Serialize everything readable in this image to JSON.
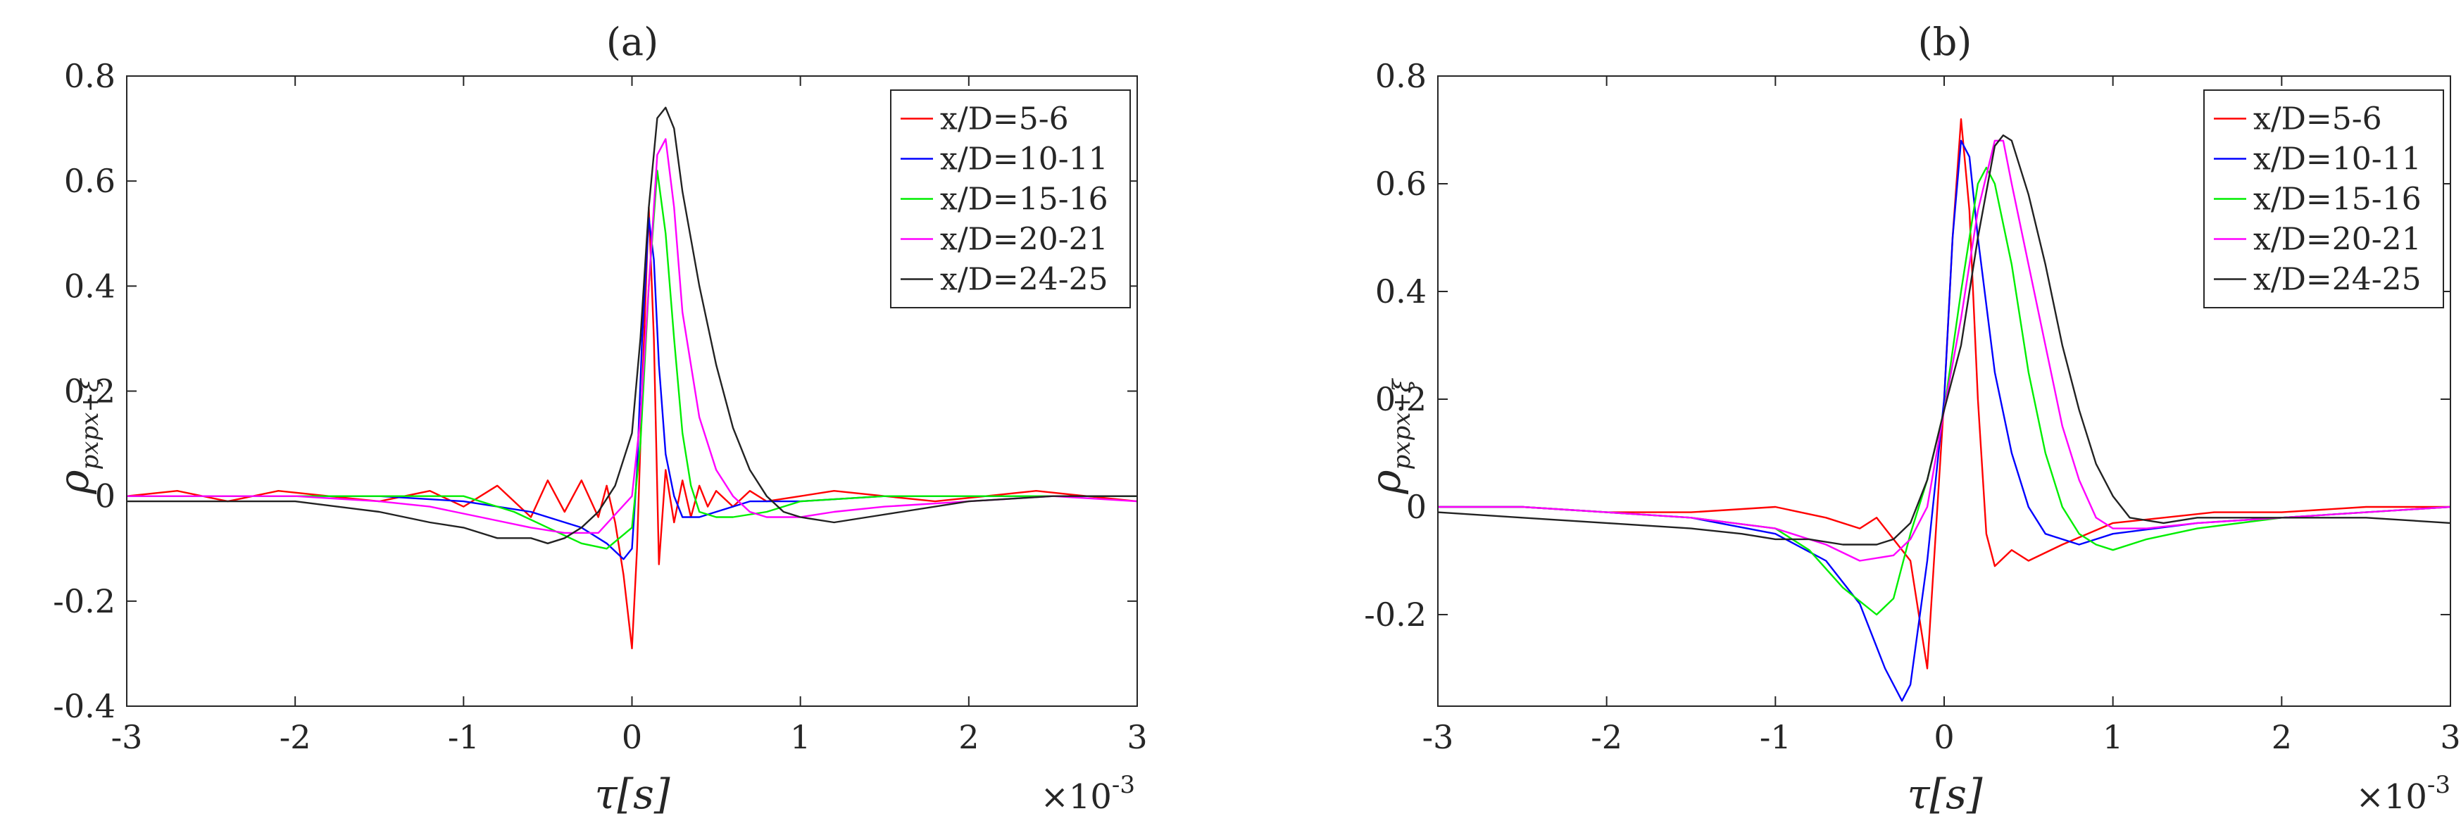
{
  "figure": {
    "exponent_label": "×10",
    "exponent_power": "-3"
  },
  "chart_data": [
    {
      "type": "line",
      "title": "(a)",
      "xlabel": "τ[s]",
      "ylabel": "ρ",
      "ylabel_subscript": "pxpx+ξ",
      "xlim": [
        -3,
        3
      ],
      "ylim": [
        -0.4,
        0.8
      ],
      "x_scale_factor": "×10^-3",
      "xticks": [
        "-3",
        "-2",
        "-1",
        "0",
        "1",
        "2",
        "3"
      ],
      "yticks": [
        "-0.4",
        "-0.2",
        "0",
        "0.2",
        "0.4",
        "0.6",
        "0.8"
      ],
      "ytick_values": [
        -0.4,
        -0.2,
        0,
        0.2,
        0.4,
        0.6,
        0.8
      ],
      "grid": false,
      "legend_position": "top-right",
      "series": [
        {
          "name": "x/D=5-6",
          "color": "#ff0000",
          "x": [
            -3,
            -2.7,
            -2.4,
            -2.1,
            -1.8,
            -1.5,
            -1.2,
            -1.0,
            -0.8,
            -0.6,
            -0.5,
            -0.4,
            -0.3,
            -0.2,
            -0.15,
            -0.1,
            -0.05,
            0.0,
            0.03,
            0.06,
            0.1,
            0.13,
            0.16,
            0.2,
            0.25,
            0.3,
            0.35,
            0.4,
            0.45,
            0.5,
            0.6,
            0.7,
            0.8,
            1.0,
            1.2,
            1.5,
            1.8,
            2.1,
            2.4,
            2.7,
            3
          ],
          "y": [
            0.0,
            0.01,
            -0.01,
            0.01,
            0.0,
            -0.01,
            0.01,
            -0.02,
            0.02,
            -0.04,
            0.03,
            -0.03,
            0.03,
            -0.04,
            0.02,
            -0.05,
            -0.15,
            -0.29,
            -0.1,
            0.2,
            0.55,
            0.3,
            -0.13,
            0.05,
            -0.05,
            0.03,
            -0.04,
            0.02,
            -0.02,
            0.01,
            -0.02,
            0.01,
            -0.01,
            0.0,
            0.01,
            0.0,
            -0.01,
            0.0,
            0.01,
            0.0,
            -0.01
          ]
        },
        {
          "name": "x/D=10-11",
          "color": "#0000ff",
          "x": [
            -3,
            -2.5,
            -2.0,
            -1.5,
            -1.0,
            -0.6,
            -0.3,
            -0.15,
            -0.05,
            0.0,
            0.03,
            0.06,
            0.1,
            0.13,
            0.16,
            0.2,
            0.25,
            0.3,
            0.4,
            0.5,
            0.7,
            1.0,
            1.5,
            2.0,
            2.5,
            3
          ],
          "y": [
            0.0,
            0.0,
            0.0,
            0.0,
            -0.01,
            -0.03,
            -0.06,
            -0.09,
            -0.12,
            -0.1,
            0.05,
            0.3,
            0.53,
            0.45,
            0.25,
            0.08,
            0.0,
            -0.04,
            -0.04,
            -0.03,
            -0.01,
            -0.01,
            0.0,
            0.0,
            0.0,
            0.0
          ]
        },
        {
          "name": "x/D=15-16",
          "color": "#00ee00",
          "x": [
            -3,
            -2.5,
            -2.0,
            -1.5,
            -1.0,
            -0.7,
            -0.5,
            -0.3,
            -0.15,
            0.0,
            0.05,
            0.1,
            0.15,
            0.2,
            0.25,
            0.3,
            0.35,
            0.4,
            0.5,
            0.6,
            0.8,
            1.0,
            1.5,
            2.0,
            2.5,
            3
          ],
          "y": [
            0.0,
            0.0,
            0.0,
            0.0,
            0.0,
            -0.03,
            -0.06,
            -0.09,
            -0.1,
            -0.06,
            0.1,
            0.4,
            0.62,
            0.5,
            0.3,
            0.12,
            0.02,
            -0.03,
            -0.04,
            -0.04,
            -0.03,
            -0.01,
            0.0,
            0.0,
            0.0,
            0.0
          ]
        },
        {
          "name": "x/D=20-21",
          "color": "#ff00ff",
          "x": [
            -3,
            -2.5,
            -2.0,
            -1.5,
            -1.2,
            -0.9,
            -0.6,
            -0.4,
            -0.2,
            0.0,
            0.05,
            0.1,
            0.15,
            0.2,
            0.25,
            0.3,
            0.4,
            0.5,
            0.6,
            0.7,
            0.8,
            1.0,
            1.2,
            1.5,
            2.0,
            2.5,
            3
          ],
          "y": [
            0.0,
            0.0,
            0.0,
            -0.01,
            -0.02,
            -0.04,
            -0.06,
            -0.07,
            -0.07,
            0.0,
            0.15,
            0.4,
            0.65,
            0.68,
            0.55,
            0.35,
            0.15,
            0.05,
            0.0,
            -0.03,
            -0.04,
            -0.04,
            -0.03,
            -0.02,
            -0.01,
            0.0,
            -0.01
          ]
        },
        {
          "name": "x/D=24-25",
          "color": "#222222",
          "x": [
            -3,
            -2.5,
            -2.0,
            -1.5,
            -1.2,
            -1.0,
            -0.8,
            -0.6,
            -0.5,
            -0.4,
            -0.3,
            -0.2,
            -0.1,
            0.0,
            0.05,
            0.1,
            0.15,
            0.2,
            0.25,
            0.3,
            0.4,
            0.5,
            0.6,
            0.7,
            0.8,
            0.9,
            1.0,
            1.2,
            1.4,
            1.6,
            2.0,
            2.5,
            3
          ],
          "y": [
            -0.01,
            -0.01,
            -0.01,
            -0.03,
            -0.05,
            -0.06,
            -0.08,
            -0.08,
            -0.09,
            -0.08,
            -0.06,
            -0.03,
            0.02,
            0.12,
            0.3,
            0.55,
            0.72,
            0.74,
            0.7,
            0.58,
            0.4,
            0.25,
            0.13,
            0.05,
            0.0,
            -0.03,
            -0.04,
            -0.05,
            -0.04,
            -0.03,
            -0.01,
            0.0,
            0.0
          ]
        }
      ]
    },
    {
      "type": "line",
      "title": "(b)",
      "xlabel": "τ[s]",
      "ylabel": "ρ",
      "ylabel_subscript": "pxpx+ξ",
      "xlim": [
        -3,
        3
      ],
      "ylim": [
        -0.37,
        0.8
      ],
      "x_scale_factor": "×10^-3",
      "xticks": [
        "-3",
        "-2",
        "-1",
        "0",
        "1",
        "2",
        "3"
      ],
      "yticks": [
        "-0.2",
        "0",
        "0.2",
        "0.4",
        "0.6",
        "0.8"
      ],
      "ytick_values": [
        -0.2,
        0,
        0.2,
        0.4,
        0.6,
        0.8
      ],
      "grid": false,
      "legend_position": "top-right",
      "series": [
        {
          "name": "x/D=5-6",
          "color": "#ff0000",
          "x": [
            -3,
            -2.5,
            -2.0,
            -1.5,
            -1.0,
            -0.7,
            -0.5,
            -0.4,
            -0.3,
            -0.2,
            -0.1,
            -0.05,
            0.0,
            0.05,
            0.1,
            0.15,
            0.2,
            0.25,
            0.3,
            0.4,
            0.5,
            0.7,
            1.0,
            1.3,
            1.6,
            2.0,
            2.5,
            3
          ],
          "y": [
            0.0,
            0.0,
            -0.01,
            -0.01,
            0.0,
            -0.02,
            -0.04,
            -0.02,
            -0.06,
            -0.1,
            -0.3,
            -0.05,
            0.2,
            0.5,
            0.72,
            0.55,
            0.2,
            -0.05,
            -0.11,
            -0.08,
            -0.1,
            -0.07,
            -0.03,
            -0.02,
            -0.01,
            -0.01,
            0.0,
            0.0
          ]
        },
        {
          "name": "x/D=10-11",
          "color": "#0000ff",
          "x": [
            -3,
            -2.5,
            -2.0,
            -1.5,
            -1.0,
            -0.7,
            -0.5,
            -0.35,
            -0.25,
            -0.2,
            -0.1,
            0.0,
            0.05,
            0.1,
            0.15,
            0.2,
            0.3,
            0.4,
            0.5,
            0.6,
            0.7,
            0.8,
            1.0,
            1.5,
            2.0,
            2.5,
            3
          ],
          "y": [
            0.0,
            0.0,
            -0.01,
            -0.02,
            -0.05,
            -0.1,
            -0.18,
            -0.3,
            -0.36,
            -0.33,
            -0.1,
            0.2,
            0.5,
            0.68,
            0.65,
            0.5,
            0.25,
            0.1,
            0.0,
            -0.05,
            -0.06,
            -0.07,
            -0.05,
            -0.03,
            -0.02,
            -0.01,
            0.0
          ]
        },
        {
          "name": "x/D=15-16",
          "color": "#00ee00",
          "x": [
            -3,
            -2.5,
            -2.0,
            -1.5,
            -1.0,
            -0.8,
            -0.6,
            -0.4,
            -0.3,
            -0.2,
            -0.1,
            0.0,
            0.1,
            0.2,
            0.25,
            0.3,
            0.4,
            0.5,
            0.6,
            0.7,
            0.8,
            0.9,
            1.0,
            1.2,
            1.5,
            2.0,
            2.5,
            3
          ],
          "y": [
            0.0,
            0.0,
            -0.01,
            -0.02,
            -0.04,
            -0.08,
            -0.15,
            -0.2,
            -0.17,
            -0.05,
            0.05,
            0.18,
            0.4,
            0.6,
            0.63,
            0.6,
            0.45,
            0.25,
            0.1,
            0.0,
            -0.05,
            -0.07,
            -0.08,
            -0.06,
            -0.04,
            -0.02,
            -0.01,
            0.0
          ]
        },
        {
          "name": "x/D=20-21",
          "color": "#ff00ff",
          "x": [
            -3,
            -2.5,
            -2.0,
            -1.5,
            -1.0,
            -0.7,
            -0.5,
            -0.3,
            -0.2,
            -0.1,
            0.0,
            0.1,
            0.2,
            0.3,
            0.35,
            0.4,
            0.5,
            0.6,
            0.7,
            0.8,
            0.9,
            1.0,
            1.2,
            1.5,
            2.0,
            2.5,
            3
          ],
          "y": [
            0.0,
            0.0,
            -0.01,
            -0.02,
            -0.04,
            -0.07,
            -0.1,
            -0.09,
            -0.06,
            0.0,
            0.18,
            0.35,
            0.55,
            0.68,
            0.68,
            0.6,
            0.45,
            0.3,
            0.15,
            0.05,
            -0.02,
            -0.04,
            -0.04,
            -0.03,
            -0.02,
            -0.01,
            0.0
          ]
        },
        {
          "name": "x/D=24-25",
          "color": "#222222",
          "x": [
            -3,
            -2.5,
            -2.0,
            -1.5,
            -1.2,
            -1.0,
            -0.8,
            -0.6,
            -0.4,
            -0.3,
            -0.2,
            -0.1,
            0.0,
            0.1,
            0.2,
            0.3,
            0.35,
            0.4,
            0.5,
            0.6,
            0.7,
            0.8,
            0.9,
            1.0,
            1.1,
            1.3,
            1.5,
            2.0,
            2.5,
            3
          ],
          "y": [
            -0.01,
            -0.02,
            -0.03,
            -0.04,
            -0.05,
            -0.06,
            -0.06,
            -0.07,
            -0.07,
            -0.06,
            -0.03,
            0.05,
            0.18,
            0.3,
            0.5,
            0.67,
            0.69,
            0.68,
            0.58,
            0.45,
            0.3,
            0.18,
            0.08,
            0.02,
            -0.02,
            -0.03,
            -0.02,
            -0.02,
            -0.02,
            -0.03
          ]
        }
      ]
    }
  ]
}
